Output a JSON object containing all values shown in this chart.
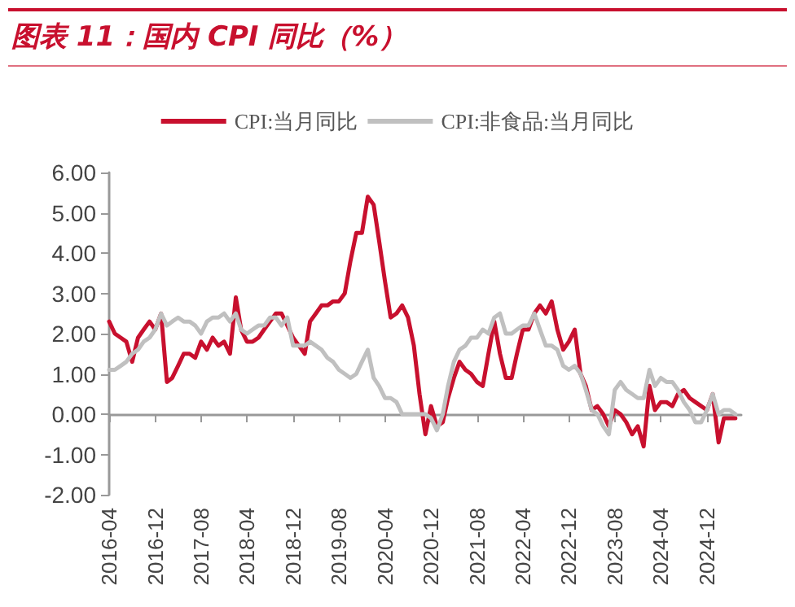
{
  "chart_data": {
    "type": "line",
    "title": "图表 11：国内 CPI 同比（%）",
    "x": [
      "2016-04",
      "2016-05",
      "2016-06",
      "2016-07",
      "2016-08",
      "2016-09",
      "2016-10",
      "2016-11",
      "2016-12",
      "2017-01",
      "2017-02",
      "2017-03",
      "2017-04",
      "2017-05",
      "2017-06",
      "2017-07",
      "2017-08",
      "2017-09",
      "2017-10",
      "2017-11",
      "2017-12",
      "2018-01",
      "2018-02",
      "2018-03",
      "2018-04",
      "2018-05",
      "2018-06",
      "2018-07",
      "2018-08",
      "2018-09",
      "2018-10",
      "2018-11",
      "2018-12",
      "2019-01",
      "2019-02",
      "2019-03",
      "2019-04",
      "2019-05",
      "2019-06",
      "2019-07",
      "2019-08",
      "2019-09",
      "2019-10",
      "2019-11",
      "2019-12",
      "2020-01",
      "2020-02",
      "2020-03",
      "2020-04",
      "2020-05",
      "2020-06",
      "2020-07",
      "2020-08",
      "2020-09",
      "2020-10",
      "2020-11",
      "2020-12",
      "2021-01",
      "2021-02",
      "2021-03",
      "2021-04",
      "2021-05",
      "2021-06",
      "2021-07",
      "2021-08",
      "2021-09",
      "2021-10",
      "2021-11",
      "2021-12",
      "2022-01",
      "2022-02",
      "2022-03",
      "2022-04",
      "2022-05",
      "2022-06",
      "2022-07",
      "2022-08",
      "2022-09",
      "2022-10",
      "2022-11",
      "2022-12",
      "2023-01",
      "2023-02",
      "2023-03",
      "2023-04",
      "2023-05",
      "2023-06",
      "2023-07",
      "2023-08",
      "2023-09",
      "2023-10",
      "2023-11",
      "2023-12",
      "2024-01",
      "2024-02",
      "2024-03",
      "2024-04",
      "2024-05",
      "2024-06",
      "2024-07",
      "2024-08",
      "2024-09",
      "2024-10",
      "2024-11",
      "2024-12",
      "2025-01",
      "2025-02",
      "2025-03",
      "2025-04",
      "2025-05"
    ],
    "series": [
      {
        "name": "CPI:当月同比",
        "color": "#c8102e",
        "values": [
          2.3,
          2.0,
          1.9,
          1.8,
          1.3,
          1.9,
          2.1,
          2.3,
          2.1,
          2.5,
          0.8,
          0.9,
          1.2,
          1.5,
          1.5,
          1.4,
          1.8,
          1.6,
          1.9,
          1.7,
          1.8,
          1.5,
          2.9,
          2.1,
          1.8,
          1.8,
          1.9,
          2.1,
          2.3,
          2.5,
          2.5,
          2.2,
          1.9,
          1.7,
          1.5,
          2.3,
          2.5,
          2.7,
          2.7,
          2.8,
          2.8,
          3.0,
          3.8,
          4.5,
          4.5,
          5.4,
          5.2,
          4.3,
          3.3,
          2.4,
          2.5,
          2.7,
          2.4,
          1.7,
          0.5,
          -0.5,
          0.2,
          -0.3,
          -0.2,
          0.4,
          0.9,
          1.3,
          1.1,
          1.0,
          0.8,
          0.7,
          1.5,
          2.3,
          1.5,
          0.9,
          0.9,
          1.5,
          2.1,
          2.1,
          2.5,
          2.7,
          2.5,
          2.8,
          2.1,
          1.6,
          1.8,
          2.1,
          1.0,
          0.7,
          0.1,
          0.2,
          0.0,
          -0.3,
          0.1,
          0.0,
          -0.2,
          -0.5,
          -0.3,
          -0.8,
          0.7,
          0.1,
          0.3,
          0.3,
          0.2,
          0.5,
          0.6,
          0.4,
          0.3,
          0.2,
          0.1,
          0.5,
          -0.7,
          -0.1,
          -0.1,
          -0.1
        ]
      },
      {
        "name": "CPI:非食品:当月同比",
        "color": "#c0c0c0",
        "values": [
          1.1,
          1.1,
          1.2,
          1.3,
          1.5,
          1.6,
          1.8,
          1.9,
          2.1,
          2.5,
          2.2,
          2.3,
          2.4,
          2.3,
          2.3,
          2.2,
          2.0,
          2.3,
          2.4,
          2.4,
          2.5,
          2.3,
          2.5,
          2.1,
          2.0,
          2.1,
          2.2,
          2.2,
          2.4,
          2.4,
          2.2,
          2.4,
          1.7,
          1.7,
          1.7,
          1.8,
          1.7,
          1.6,
          1.4,
          1.3,
          1.1,
          1.0,
          0.9,
          1.0,
          1.3,
          1.6,
          0.9,
          0.7,
          0.4,
          0.4,
          0.3,
          0.0,
          0.0,
          0.0,
          0.0,
          0.0,
          -0.1,
          -0.4,
          0.0,
          0.7,
          1.3,
          1.6,
          1.7,
          1.9,
          1.9,
          2.1,
          2.0,
          2.4,
          2.5,
          2.0,
          2.0,
          2.1,
          2.2,
          2.2,
          2.5,
          2.1,
          1.7,
          1.7,
          1.6,
          1.2,
          1.1,
          1.2,
          1.0,
          0.6,
          0.1,
          0.0,
          -0.3,
          -0.5,
          0.6,
          0.8,
          0.6,
          0.5,
          0.4,
          0.4,
          1.1,
          0.7,
          0.9,
          0.8,
          0.8,
          0.6,
          0.3,
          0.1,
          -0.2,
          -0.2,
          0.1,
          0.5,
          0.0,
          0.1,
          0.1,
          0.0
        ]
      }
    ],
    "xlim": [
      "2016-04",
      "2025-06"
    ],
    "xticks": [
      "2016-04",
      "2016-12",
      "2017-08",
      "2018-04",
      "2018-12",
      "2019-08",
      "2020-04",
      "2020-12",
      "2021-08",
      "2022-04",
      "2022-12",
      "2023-08",
      "2024-04",
      "2024-12"
    ],
    "ylim": [
      -2,
      6
    ],
    "yticks": [
      {
        "value": -2,
        "label": "-2.00"
      },
      {
        "value": -1,
        "label": "-1.00"
      },
      {
        "value": 0,
        "label": "0.00"
      },
      {
        "value": 1,
        "label": "1.00"
      },
      {
        "value": 2,
        "label": "2.00"
      },
      {
        "value": 3,
        "label": "3.00"
      },
      {
        "value": 4,
        "label": "4.00"
      },
      {
        "value": 5,
        "label": "5.00"
      },
      {
        "value": 6,
        "label": "6.00"
      }
    ],
    "legend": "top",
    "marker": "none",
    "line_style": "solid"
  }
}
